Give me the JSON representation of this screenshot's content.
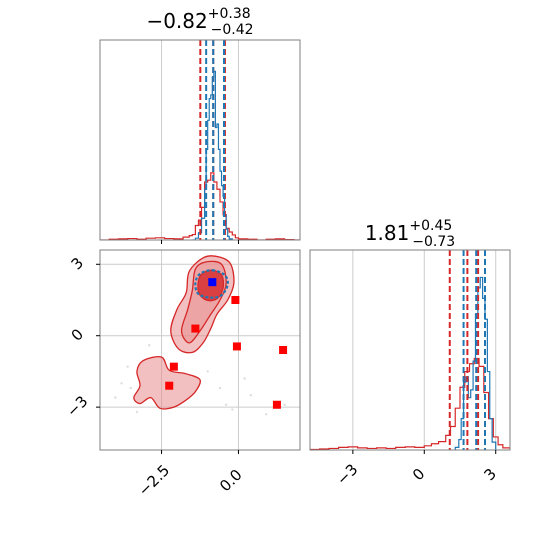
{
  "colors": {
    "red": "#d62728",
    "blue": "#1f77b4",
    "fill_red": "#e88c8c",
    "grid": "#cccccc",
    "frame": "#7f7f7f",
    "marker_red": "#ff0000",
    "marker_blue": "#0000ff"
  },
  "chart_data": [
    {
      "type": "histogram",
      "panel": "top-left",
      "title": {
        "main": "−0.82",
        "sup": "+0.38",
        "sub": "−0.42"
      },
      "xlim": [
        -4.5,
        2.0
      ],
      "grid": true,
      "red_quantiles": [
        -1.24,
        -0.82,
        -0.44
      ],
      "blue_quantiles": [
        -1.05,
        -0.82,
        -0.47
      ],
      "red_bins": {
        "x": [
          -4.5,
          -4.2,
          -3.9,
          -3.6,
          -3.3,
          -3.0,
          -2.7,
          -2.4,
          -2.1,
          -1.8,
          -1.6,
          -1.5,
          -1.4,
          -1.3,
          -1.2,
          -1.1,
          -1.0,
          -0.9,
          -0.8,
          -0.7,
          -0.6,
          -0.5,
          -0.4,
          -0.3,
          -0.2,
          -0.1,
          0.0,
          0.3,
          0.6,
          0.9,
          1.2,
          1.5,
          1.8
        ],
        "counts": [
          0,
          2,
          3,
          4,
          2,
          5,
          6,
          4,
          3,
          8,
          12,
          15,
          40,
          55,
          90,
          160,
          165,
          185,
          160,
          140,
          105,
          70,
          32,
          22,
          14,
          6,
          3,
          2,
          0,
          2,
          3,
          1,
          0
        ]
      },
      "blue_bins": {
        "x": [
          -1.5,
          -1.4,
          -1.3,
          -1.2,
          -1.1,
          -1.05,
          -1.0,
          -0.95,
          -0.9,
          -0.85,
          -0.8,
          -0.75,
          -0.7,
          -0.65,
          -0.6,
          -0.55,
          -0.5,
          -0.45,
          -0.4,
          -0.35,
          -0.3,
          -0.2
        ],
        "counts": [
          0,
          5,
          20,
          60,
          140,
          250,
          330,
          390,
          400,
          450,
          465,
          310,
          320,
          250,
          190,
          150,
          120,
          70,
          30,
          10,
          3,
          0
        ]
      }
    },
    {
      "type": "scatter-contour",
      "panel": "bottom-left",
      "xlim": [
        -4.5,
        2.0
      ],
      "ylim": [
        -4.8,
        3.6
      ],
      "xticks": [
        -2.5,
        0.0
      ],
      "xtick_labels": [
        "−2.5",
        "0.0"
      ],
      "yticks": [
        3,
        0,
        -3
      ],
      "ytick_labels": [
        "3",
        "0",
        "−3"
      ],
      "grid": true,
      "red_squares": [
        [
          -0.1,
          1.5
        ],
        [
          -1.4,
          0.3
        ],
        [
          -0.05,
          -0.45
        ],
        [
          1.45,
          -0.6
        ],
        [
          -2.1,
          -1.3
        ],
        [
          -2.25,
          -2.1
        ],
        [
          1.25,
          -2.9
        ]
      ],
      "blue_square": [
        -0.85,
        2.25
      ],
      "red_outer_contours": [
        [
          [
            -1.1,
            3.3
          ],
          [
            -0.6,
            3.3
          ],
          [
            -0.25,
            3.0
          ],
          [
            -0.15,
            2.2
          ],
          [
            -0.35,
            1.5
          ],
          [
            -0.7,
            0.9
          ],
          [
            -0.9,
            0.3
          ],
          [
            -1.15,
            -0.3
          ],
          [
            -1.5,
            -0.7
          ],
          [
            -1.95,
            -0.55
          ],
          [
            -2.2,
            0.2
          ],
          [
            -2.0,
            1.1
          ],
          [
            -1.7,
            1.8
          ],
          [
            -1.6,
            2.7
          ]
        ],
        [
          [
            -3.1,
            -1.05
          ],
          [
            -2.5,
            -0.9
          ],
          [
            -2.25,
            -1.45
          ],
          [
            -1.7,
            -1.6
          ],
          [
            -1.25,
            -1.85
          ],
          [
            -1.4,
            -2.35
          ],
          [
            -1.7,
            -2.7
          ],
          [
            -2.1,
            -3.0
          ],
          [
            -2.55,
            -3.05
          ],
          [
            -2.85,
            -2.6
          ],
          [
            -3.2,
            -2.85
          ],
          [
            -3.4,
            -2.6
          ],
          [
            -3.2,
            -2.1
          ],
          [
            -3.3,
            -1.5
          ]
        ]
      ],
      "red_mid_contours": [
        [
          [
            -1.05,
            3.1
          ],
          [
            -0.55,
            3.0
          ],
          [
            -0.4,
            2.2
          ],
          [
            -0.6,
            1.5
          ],
          [
            -0.95,
            0.8
          ],
          [
            -1.25,
            0.2
          ],
          [
            -1.6,
            -0.3
          ],
          [
            -1.85,
            0.2
          ],
          [
            -1.65,
            1.1
          ],
          [
            -1.5,
            1.9
          ],
          [
            -1.4,
            2.8
          ]
        ]
      ],
      "red_inner_contours": [
        [
          [
            -0.9,
            2.75
          ],
          [
            -0.55,
            2.55
          ],
          [
            -0.5,
            2.0
          ],
          [
            -0.7,
            1.55
          ],
          [
            -1.05,
            1.5
          ],
          [
            -1.3,
            1.85
          ],
          [
            -1.25,
            2.5
          ]
        ]
      ],
      "blue_contours": [
        [
          [
            -0.85,
            2.75
          ],
          [
            -0.45,
            2.55
          ],
          [
            -0.35,
            2.15
          ],
          [
            -0.55,
            1.7
          ],
          [
            -0.9,
            1.6
          ],
          [
            -1.3,
            1.75
          ],
          [
            -1.4,
            2.2
          ],
          [
            -1.25,
            2.6
          ]
        ]
      ]
    },
    {
      "type": "histogram",
      "panel": "bottom-right",
      "title": {
        "main": "1.81",
        "sup": "+0.45",
        "sub": "−0.73"
      },
      "xlim": [
        -4.8,
        3.6
      ],
      "xticks": [
        -3,
        0,
        3
      ],
      "xtick_labels": [
        "−3",
        "0",
        "3"
      ],
      "grid": true,
      "red_quantiles": [
        1.07,
        1.81,
        2.26
      ],
      "blue_quantiles": [
        1.65,
        2.18,
        2.55
      ],
      "red_bins": {
        "x": [
          -4.8,
          -4.4,
          -4.0,
          -3.6,
          -3.2,
          -2.8,
          -2.4,
          -2.0,
          -1.6,
          -1.2,
          -0.8,
          -0.4,
          0.0,
          0.3,
          0.6,
          0.9,
          1.1,
          1.3,
          1.5,
          1.7,
          1.9,
          2.1,
          2.3,
          2.5,
          2.7,
          2.9,
          3.1,
          3.3,
          3.6
        ],
        "counts": [
          1,
          2,
          3,
          5,
          6,
          4,
          3,
          4,
          3,
          5,
          6,
          5,
          8,
          12,
          16,
          28,
          45,
          80,
          120,
          150,
          165,
          175,
          160,
          110,
          60,
          25,
          10,
          4,
          0
        ]
      },
      "blue_bins": {
        "x": [
          1.3,
          1.45,
          1.55,
          1.65,
          1.75,
          1.85,
          1.95,
          2.05,
          2.15,
          2.25,
          2.35,
          2.45,
          2.55,
          2.65,
          2.75,
          2.85,
          3.0
        ],
        "counts": [
          5,
          20,
          60,
          130,
          140,
          100,
          115,
          170,
          260,
          310,
          330,
          290,
          250,
          150,
          60,
          15,
          0
        ]
      }
    }
  ]
}
